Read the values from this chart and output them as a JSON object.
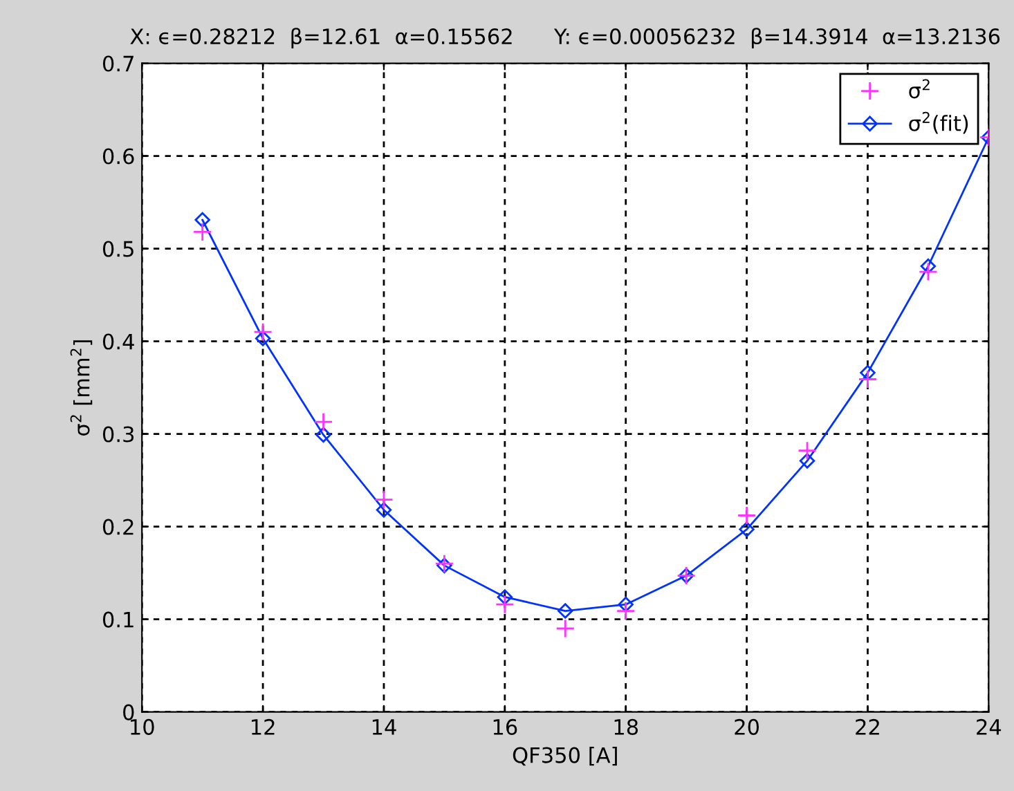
{
  "chart_data": {
    "type": "line",
    "title": "X: ϵ=0.28212  β=12.61  α=0.15562      Y: ϵ=0.00056232  β=14.3914  α=13.2136",
    "xlabel": "QF350 [A]",
    "ylabel": "σ$^{2}$ [mm$^{2}$]",
    "x": [
      11,
      12,
      13,
      14,
      15,
      16,
      17,
      18,
      19,
      20,
      21,
      22,
      23,
      24
    ],
    "series": [
      {
        "name": "σ$^{2}$",
        "type": "scatter",
        "marker": "cross",
        "color": "#ff33ff",
        "values": [
          0.518,
          0.41,
          0.313,
          0.229,
          0.16,
          0.116,
          0.09,
          0.109,
          0.147,
          0.212,
          0.282,
          0.359,
          0.475,
          0.62
        ]
      },
      {
        "name": "σ$^{2}$(fit)",
        "marker": "diamond",
        "color": "#0033ff",
        "values": [
          0.531,
          0.403,
          0.299,
          0.218,
          0.158,
          0.124,
          0.109,
          0.116,
          0.147,
          0.197,
          0.271,
          0.366,
          0.481,
          0.62
        ]
      }
    ],
    "xlim": [
      10,
      24
    ],
    "xticks": [
      10,
      12,
      14,
      16,
      18,
      20,
      22,
      24
    ],
    "ylim": [
      0,
      0.7
    ],
    "yticks": [
      0,
      0.1,
      0.2,
      0.3,
      0.4,
      0.5,
      0.6,
      0.7
    ],
    "grid": true,
    "legend": "top right"
  }
}
